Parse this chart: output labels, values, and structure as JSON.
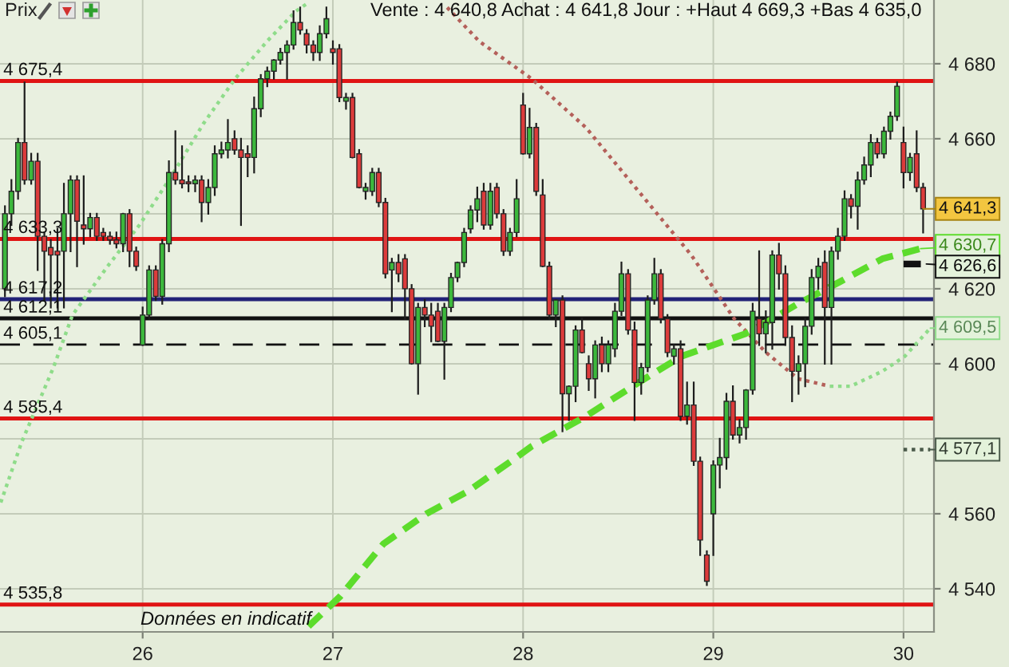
{
  "chart_data": {
    "type": "candlestick",
    "title": "Vente : 4 640,8 Achat : 4 641,8 Jour : +Haut 4 669,3 +Bas 4 635,0",
    "ylabel": "Prix",
    "x": [
      25.276,
      25.31,
      25.345,
      25.379,
      25.414,
      25.448,
      25.483,
      25.517,
      25.552,
      25.586,
      25.621,
      25.655,
      25.69,
      25.724,
      25.759,
      25.793,
      25.828,
      25.862,
      25.897,
      25.931,
      25.966,
      26,
      26.034,
      26.069,
      26.103,
      26.138,
      26.172,
      26.207,
      26.241,
      26.276,
      26.31,
      26.345,
      26.379,
      26.414,
      26.448,
      26.483,
      26.517,
      26.552,
      26.586,
      26.621,
      26.655,
      26.69,
      26.724,
      26.759,
      26.793,
      26.828,
      26.862,
      26.897,
      26.931,
      26.966,
      27,
      27.034,
      27.069,
      27.103,
      27.138,
      27.172,
      27.207,
      27.241,
      27.276,
      27.31,
      27.345,
      27.379,
      27.414,
      27.448,
      27.483,
      27.517,
      27.552,
      27.586,
      27.621,
      27.655,
      27.69,
      27.724,
      27.759,
      27.793,
      27.828,
      27.862,
      27.897,
      27.931,
      27.966,
      28,
      28.034,
      28.069,
      28.103,
      28.138,
      28.172,
      28.207,
      28.241,
      28.276,
      28.31,
      28.345,
      28.379,
      28.414,
      28.448,
      28.483,
      28.517,
      28.552,
      28.586,
      28.621,
      28.655,
      28.69,
      28.724,
      28.759,
      28.793,
      28.828,
      28.862,
      28.897,
      28.931,
      28.966,
      29,
      29.034,
      29.069,
      29.103,
      29.138,
      29.172,
      29.207,
      29.241,
      29.276,
      29.31,
      29.345,
      29.379,
      29.414,
      29.448,
      29.483,
      29.517,
      29.552,
      29.586,
      29.621,
      29.655,
      29.69,
      29.724,
      29.759,
      29.793,
      29.828,
      29.862,
      29.897,
      29.931,
      29.966,
      30,
      30.034,
      30.069,
      30.103
    ],
    "ohlc": [
      [
        4620,
        4642,
        4618,
        4640
      ],
      [
        4640,
        4649,
        4637,
        4646
      ],
      [
        4646,
        4660,
        4644,
        4659
      ],
      [
        4659,
        4675,
        4648,
        4649
      ],
      [
        4649,
        4656,
        4648,
        4654
      ],
      [
        4654,
        4656,
        4625,
        4634
      ],
      [
        4634,
        4635,
        4617,
        4630
      ],
      [
        4631,
        4633,
        4615,
        4629
      ],
      [
        4630,
        4636,
        4615,
        4629
      ],
      [
        4630,
        4648,
        4615,
        4640
      ],
      [
        4640,
        4650,
        4630,
        4649
      ],
      [
        4649,
        4650,
        4626,
        4638
      ],
      [
        4637,
        4650,
        4632,
        4636
      ],
      [
        4636,
        4640,
        4634,
        4639
      ],
      [
        4639,
        4640,
        4633,
        4634
      ],
      [
        4635,
        4636,
        4633,
        4634
      ],
      [
        4634,
        4635,
        4632,
        4633
      ],
      [
        4633,
        4635,
        4631,
        4632
      ],
      [
        4632,
        4640,
        4630,
        4640
      ],
      [
        4640,
        4641,
        4626,
        4630
      ],
      [
        4630,
        4631,
        4625,
        4626
      ],
      [
        4605,
        4615,
        4605,
        4613
      ],
      [
        4613,
        4626,
        4612,
        4625
      ],
      [
        4625,
        4626,
        4617,
        4618
      ],
      [
        4618,
        4633,
        4616,
        4632
      ],
      [
        4632,
        4654,
        4630,
        4651
      ],
      [
        4651,
        4662,
        4648,
        4649
      ],
      [
        4649,
        4658,
        4647,
        4648
      ],
      [
        4648.5,
        4650,
        4646,
        4648
      ],
      [
        4648,
        4650,
        4646,
        4649
      ],
      [
        4649,
        4650,
        4638,
        4643
      ],
      [
        4643,
        4649,
        4640,
        4647
      ],
      [
        4647,
        4658,
        4645,
        4656
      ],
      [
        4656,
        4659,
        4655,
        4657
      ],
      [
        4657,
        4665,
        4655,
        4659
      ],
      [
        4660,
        4662,
        4656,
        4657
      ],
      [
        4657,
        4660,
        4637,
        4655
      ],
      [
        4656,
        4658,
        4650,
        4655
      ],
      [
        4655,
        4671,
        4651,
        4668
      ],
      [
        4668,
        4677,
        4666,
        4676
      ],
      [
        4676,
        4679,
        4674,
        4678
      ],
      [
        4678,
        4681,
        4676,
        4681
      ],
      [
        4681,
        4684,
        4680,
        4683
      ],
      [
        4683,
        4686,
        4676,
        4685
      ],
      [
        4685,
        4694,
        4684,
        4691
      ],
      [
        4691,
        4695,
        4688,
        4689
      ],
      [
        4688,
        4689,
        4683,
        4685
      ],
      [
        4685,
        4686,
        4681,
        4683
      ],
      [
        4683,
        4690,
        4681,
        4688
      ],
      [
        4688,
        4695,
        4687,
        4692
      ],
      [
        4684,
        4686,
        4680,
        4683
      ],
      [
        4684,
        4685,
        4670,
        4671
      ],
      [
        4670,
        4672,
        4668,
        4671
      ],
      [
        4671,
        4672,
        4655,
        4655
      ],
      [
        4656,
        4657,
        4647,
        4647
      ],
      [
        4646,
        4648,
        4644,
        4647
      ],
      [
        4646,
        4652,
        4645,
        4651
      ],
      [
        4651,
        4652,
        4642,
        4643
      ],
      [
        4643,
        4644,
        4623,
        4624
      ],
      [
        4625,
        4628,
        4614,
        4627
      ],
      [
        4627,
        4629,
        4622,
        4624
      ],
      [
        4628,
        4629,
        4612,
        4620
      ],
      [
        4620,
        4621,
        4600,
        4600
      ],
      [
        4600,
        4616,
        4592,
        4615
      ],
      [
        4615,
        4617,
        4610,
        4613
      ],
      [
        4613,
        4616,
        4606,
        4610
      ],
      [
        4614,
        4616,
        4606,
        4606
      ],
      [
        4606,
        4616,
        4596,
        4615
      ],
      [
        4615,
        4624,
        4614,
        4623
      ],
      [
        4623,
        4627,
        4622,
        4627
      ],
      [
        4627,
        4636,
        4626,
        4635
      ],
      [
        4636,
        4642,
        4635,
        4641
      ],
      [
        4641,
        4647,
        4638,
        4644
      ],
      [
        4646,
        4648,
        4636,
        4637
      ],
      [
        4637,
        4648,
        4636,
        4646
      ],
      [
        4647,
        4648,
        4639,
        4640
      ],
      [
        4640,
        4641,
        4629,
        4630
      ],
      [
        4630,
        4636,
        4629,
        4635
      ],
      [
        4635,
        4649,
        4634,
        4644
      ],
      [
        4669,
        4672,
        4656,
        4656
      ],
      [
        4656,
        4668,
        4655,
        4663
      ],
      [
        4663,
        4664,
        4645,
        4646
      ],
      [
        4645,
        4649,
        4626,
        4626
      ],
      [
        4626,
        4627,
        4612,
        4613
      ],
      [
        4613,
        4617,
        4610,
        4617
      ],
      [
        4617,
        4618,
        4582,
        4592
      ],
      [
        4592,
        4594,
        4585,
        4594
      ],
      [
        4594,
        4610,
        4590,
        4609
      ],
      [
        4609,
        4612,
        4603,
        4603
      ],
      [
        4600,
        4602,
        4593,
        4596
      ],
      [
        4596,
        4606,
        4591,
        4605
      ],
      [
        4605,
        4607,
        4598,
        4600
      ],
      [
        4600,
        4606,
        4598,
        4605
      ],
      [
        4604,
        4616,
        4602,
        4614
      ],
      [
        4614,
        4627,
        4613,
        4624
      ],
      [
        4624,
        4625,
        4608,
        4609
      ],
      [
        4609,
        4611,
        4585,
        4595
      ],
      [
        4595,
        4600,
        4592,
        4599
      ],
      [
        4599,
        4618,
        4598,
        4617
      ],
      [
        4617,
        4628,
        4616,
        4624
      ],
      [
        4624,
        4625,
        4611,
        4612
      ],
      [
        4612,
        4613,
        4602,
        4603
      ],
      [
        4602,
        4605,
        4600,
        4604
      ],
      [
        4604,
        4606,
        4585,
        4586
      ],
      [
        4586,
        4595,
        4584,
        4589
      ],
      [
        4589,
        4595,
        4573,
        4574
      ],
      [
        4574,
        4575,
        4549,
        4553
      ],
      [
        4549,
        4550,
        4541,
        4542
      ],
      [
        4560,
        4574,
        4549,
        4573
      ],
      [
        4573,
        4580,
        4567,
        4575
      ],
      [
        4575,
        4592,
        4572,
        4590
      ],
      [
        4590,
        4594,
        4580,
        4581
      ],
      [
        4581,
        4585,
        4579,
        4583
      ],
      [
        4583,
        4593,
        4580,
        4593
      ],
      [
        4593,
        4616,
        4592,
        4614
      ],
      [
        4612,
        4630,
        4605,
        4608
      ],
      [
        4608,
        4614,
        4603,
        4611
      ],
      [
        4611,
        4630,
        4604,
        4629
      ],
      [
        4629,
        4632,
        4620,
        4624
      ],
      [
        4624,
        4626,
        4605,
        4607
      ],
      [
        4607,
        4610,
        4590,
        4598
      ],
      [
        4598,
        4602,
        4592,
        4600
      ],
      [
        4600,
        4612,
        4594,
        4610
      ],
      [
        4610,
        4625,
        4608,
        4623
      ],
      [
        4623,
        4628,
        4620,
        4626
      ],
      [
        4627,
        4630,
        4600,
        4615
      ],
      [
        4615,
        4631,
        4600,
        4630
      ],
      [
        4630,
        4636,
        4628,
        4634
      ],
      [
        4634,
        4646,
        4633,
        4644
      ],
      [
        4644,
        4645,
        4639,
        4642
      ],
      [
        4642,
        4651,
        4636,
        4649
      ],
      [
        4649,
        4655,
        4648,
        4653
      ],
      [
        4653,
        4661,
        4650,
        4659
      ],
      [
        4659,
        4660,
        4655,
        4656
      ],
      [
        4656,
        4663,
        4655,
        4662
      ],
      [
        4662,
        4667,
        4660,
        4666
      ],
      [
        4666,
        4675,
        4665,
        4674
      ],
      [
        4659,
        4663,
        4647,
        4651
      ],
      [
        4651,
        4656,
        4649,
        4655
      ],
      [
        4656,
        4662,
        4646,
        4647
      ],
      [
        4647,
        4648,
        4635,
        4641.3
      ]
    ],
    "colors": [
      "#3cb83c",
      "#3cb83c",
      "#3cb83c",
      "#dc3b3b",
      "#3cb83c",
      "#dc3b3b",
      "#dc3b3b",
      "#dc3b3b",
      "#dc3b3b",
      "#3cb83c",
      "#3cb83c",
      "#dc3b3b",
      "#dc3b3b",
      "#3cb83c",
      "#dc3b3b",
      "#dc3b3b",
      "#dc3b3b",
      "#dc3b3b",
      "#3cb83c",
      "#dc3b3b",
      "#dc3b3b",
      "#3cb83c",
      "#3cb83c",
      "#dc3b3b",
      "#3cb83c",
      "#3cb83c",
      "#dc3b3b",
      "#dc3b3b",
      "#dc3b3b",
      "#3cb83c",
      "#dc3b3b",
      "#3cb83c",
      "#3cb83c",
      "#3cb83c",
      "#3cb83c",
      "#dc3b3b",
      "#dc3b3b",
      "#dc3b3b",
      "#3cb83c",
      "#3cb83c",
      "#3cb83c",
      "#3cb83c",
      "#3cb83c",
      "#3cb83c",
      "#3cb83c",
      "#dc3b3b",
      "#dc3b3b",
      "#dc3b3b",
      "#3cb83c",
      "#3cb83c",
      "#dc3b3b",
      "#dc3b3b",
      "#3cb83c",
      "#dc3b3b",
      "#dc3b3b",
      "#3cb83c",
      "#3cb83c",
      "#dc3b3b",
      "#dc3b3b",
      "#3cb83c",
      "#dc3b3b",
      "#dc3b3b",
      "#dc3b3b",
      "#3cb83c",
      "#dc3b3b",
      "#dc3b3b",
      "#dc3b3b",
      "#3cb83c",
      "#3cb83c",
      "#3cb83c",
      "#3cb83c",
      "#3cb83c",
      "#3cb83c",
      "#dc3b3b",
      "#3cb83c",
      "#dc3b3b",
      "#dc3b3b",
      "#3cb83c",
      "#3cb83c",
      "#dc3b3b",
      "#3cb83c",
      "#dc3b3b",
      "#dc3b3b",
      "#dc3b3b",
      "#3cb83c",
      "#dc3b3b",
      "#3cb83c",
      "#3cb83c",
      "#dc3b3b",
      "#dc3b3b",
      "#3cb83c",
      "#dc3b3b",
      "#3cb83c",
      "#3cb83c",
      "#3cb83c",
      "#dc3b3b",
      "#dc3b3b",
      "#3cb83c",
      "#3cb83c",
      "#3cb83c",
      "#dc3b3b",
      "#dc3b3b",
      "#3cb83c",
      "#dc3b3b",
      "#3cb83c",
      "#dc3b3b",
      "#dc3b3b",
      "#dc3b3b",
      "#3cb83c",
      "#3cb83c",
      "#3cb83c",
      "#dc3b3b",
      "#3cb83c",
      "#3cb83c",
      "#3cb83c",
      "#dc3b3b",
      "#3cb83c",
      "#3cb83c",
      "#dc3b3b",
      "#dc3b3b",
      "#dc3b3b",
      "#3cb83c",
      "#3cb83c",
      "#3cb83c",
      "#3cb83c",
      "#dc3b3b",
      "#3cb83c",
      "#3cb83c",
      "#3cb83c",
      "#dc3b3b",
      "#3cb83c",
      "#3cb83c",
      "#3cb83c",
      "#dc3b3b",
      "#3cb83c",
      "#3cb83c",
      "#3cb83c",
      "#dc3b3b",
      "#3cb83c",
      "#dc3b3b",
      "#dc3b3b"
    ],
    "series": [
      {
        "type": "line",
        "x": [
          25.254,
          25.363,
          25.531,
          25.631,
          25.816,
          25.983,
          26.151,
          26.319,
          26.486,
          26.654,
          26.805,
          26.863
        ],
        "values": [
          4563,
          4579,
          4599,
          4613,
          4626,
          4637,
          4650,
          4664,
          4676,
          4686,
          4694,
          4696
        ],
        "color": "#8fdc8a",
        "line_style": "dotted"
      },
      {
        "type": "line",
        "x": [
          27.601,
          27.769,
          28.045,
          28.33,
          28.607,
          28.884,
          29.11,
          29.277,
          29.445,
          29.613
        ],
        "values": [
          4695,
          4686,
          4676,
          4663,
          4646,
          4629,
          4612,
          4603,
          4596,
          4594
        ],
        "color": "#b4605a",
        "line_style": "dotted"
      },
      {
        "type": "line",
        "x": [
          29.613,
          29.722,
          29.889,
          30.007,
          30.141
        ],
        "values": [
          4594,
          4594,
          4598,
          4602,
          4609.5
        ],
        "color": "#8fdc8a",
        "line_style": "dotted"
      },
      {
        "type": "line",
        "x": [
          26.872,
          27.039,
          27.266,
          27.492,
          27.71,
          27.936,
          28.045,
          28.33,
          28.607,
          28.833,
          29.168,
          29.277,
          29.445,
          29.671,
          29.889,
          30.09
        ],
        "values": [
          4530,
          4538,
          4552,
          4560,
          4566,
          4574,
          4578,
          4586,
          4595,
          4602,
          4608,
          4611,
          4616,
          4622,
          4628,
          4630.7
        ],
        "color": "#5ddc2c",
        "line_style": "dashed"
      },
      {
        "type": "line",
        "x": [
          30.0,
          30.12
        ],
        "values": [
          4626.6,
          4626.6
        ],
        "color": "#111111",
        "line_style": "dashed"
      },
      {
        "type": "line",
        "x": [
          30.0,
          30.14
        ],
        "values": [
          4577.1,
          4577.1
        ],
        "color": "#4a5a4a",
        "line_style": "dotted"
      }
    ],
    "xlim": [
      25.25,
      30.16
    ],
    "ylim": [
      4528.5,
      4697
    ],
    "xticks": [
      26,
      27,
      28,
      29,
      30
    ],
    "yticks": [
      {
        "value": 4540,
        "label": "4 540"
      },
      {
        "value": 4560,
        "label": "4 560"
      },
      {
        "value": 4580,
        "label": null
      },
      {
        "value": 4600,
        "label": "4 600"
      },
      {
        "value": 4620,
        "label": "4 620"
      },
      {
        "value": 4640,
        "label": null
      },
      {
        "value": 4660,
        "label": "4 660"
      },
      {
        "value": 4680,
        "label": "4 680"
      }
    ],
    "grid": true,
    "ref_lines": [
      {
        "axis": "y",
        "value": 4675.4,
        "label": "4 675,4",
        "color": "#e01414",
        "line_style": "solid"
      },
      {
        "axis": "y",
        "value": 4633.3,
        "label": "4 633,3",
        "color": "#e01414",
        "line_style": "solid"
      },
      {
        "axis": "y",
        "value": 4617.2,
        "label": "4 617,2",
        "color": "#222277",
        "line_style": "solid"
      },
      {
        "axis": "y",
        "value": 4612.1,
        "label": "4 612,1",
        "color": "#111111",
        "line_style": "solid"
      },
      {
        "axis": "y",
        "value": 4605.1,
        "label": "4 605,1",
        "color": "#111111",
        "line_style": "dashed"
      },
      {
        "axis": "y",
        "value": 4585.4,
        "label": "4 585,4",
        "color": "#e01414",
        "line_style": "solid"
      },
      {
        "axis": "y",
        "value": 4535.8,
        "label": "4 535,8",
        "color": "#e01414",
        "line_style": "solid"
      }
    ],
    "annotations": [
      "Données en indicatif",
      {
        "text": "4 641,3",
        "x": 30.103,
        "y": 4641.3
      },
      {
        "text": "4 630,7",
        "x": 30.09,
        "y": 4630.7
      },
      {
        "text": "4 626,6",
        "x": 30.12,
        "y": 4626.6
      },
      {
        "text": "4 609,5",
        "x": 30.141,
        "y": 4609.5
      },
      {
        "text": "4 577,1",
        "x": 30.14,
        "y": 4577.1
      }
    ]
  }
}
